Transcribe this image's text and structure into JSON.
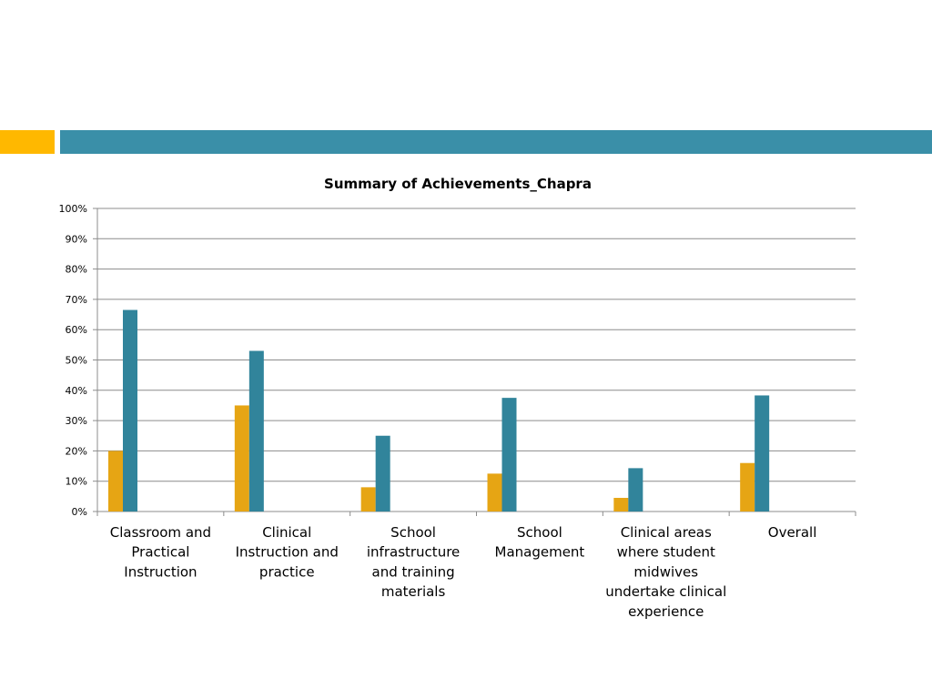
{
  "slide": {
    "accent_colors": {
      "left_bar": "#FFB800",
      "right_bar": "#3A8FA8"
    }
  },
  "chart_data": {
    "type": "bar",
    "title": "Summary of Achievements_Chapra",
    "categories": [
      "Classroom and Practical Instruction",
      "Clinical Instruction and practice",
      "School infrastructure and training materials",
      "School Management",
      "Clinical areas where student midwives undertake clinical experience",
      "Overall"
    ],
    "category_label_lines": [
      [
        "Classroom and",
        "Practical",
        "Instruction"
      ],
      [
        "Clinical",
        "Instruction and",
        "practice"
      ],
      [
        "School",
        "infrastructure",
        "and training",
        "materials"
      ],
      [
        "School",
        "Management"
      ],
      [
        "Clinical areas",
        "where student",
        "midwives",
        "undertake clinical",
        "experience"
      ],
      [
        "Overall"
      ]
    ],
    "series": [
      {
        "name": "Series 1",
        "color": "#E6A514",
        "values": [
          20,
          35,
          8,
          12.5,
          4.5,
          16
        ]
      },
      {
        "name": "Series 2",
        "color": "#31849B",
        "values": [
          66.5,
          53,
          25,
          37.5,
          14.3,
          38.3
        ]
      }
    ],
    "yticks": [
      "0%",
      "10%",
      "20%",
      "30%",
      "40%",
      "50%",
      "60%",
      "70%",
      "80%",
      "90%",
      "100%"
    ],
    "ylim": [
      0,
      100
    ],
    "grid": true,
    "legend": "none",
    "xlabel": "",
    "ylabel": ""
  }
}
